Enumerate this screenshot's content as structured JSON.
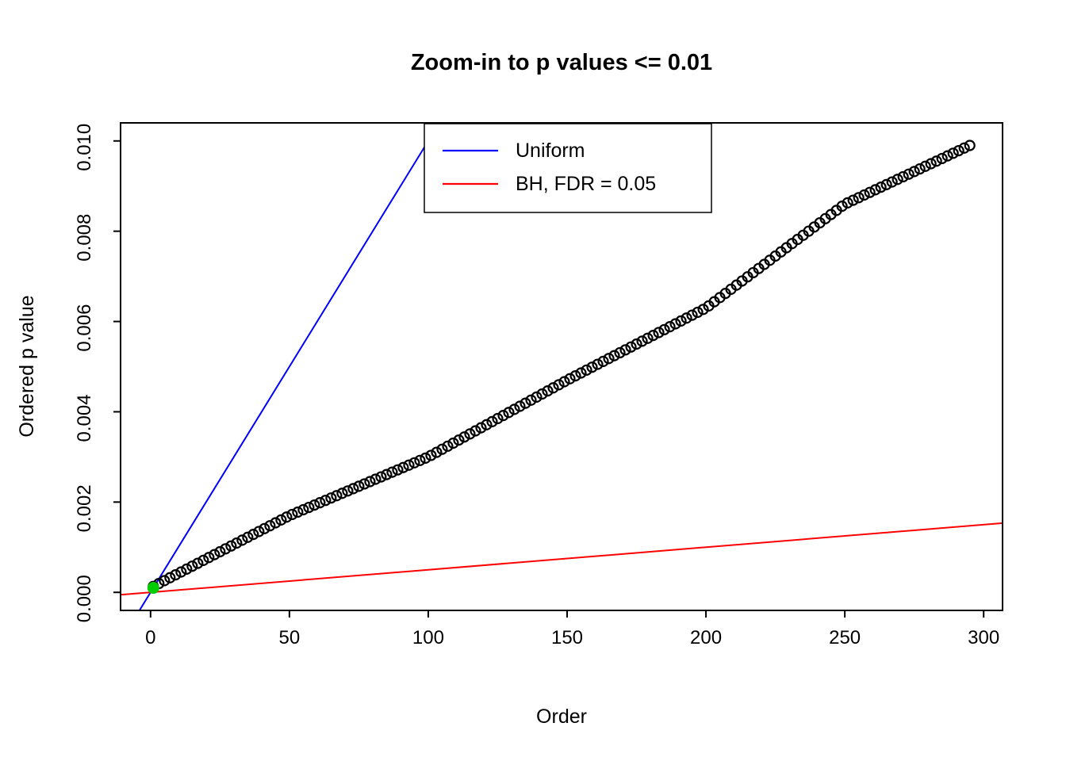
{
  "chart_data": {
    "type": "scatter",
    "title": "Zoom-in to p values <= 0.01",
    "xlabel": "Order",
    "ylabel": "Ordered p value",
    "xlim_usr": [
      -10.8,
      306.8
    ],
    "ylim_usr": [
      -0.0004,
      0.0104
    ],
    "xticks": [
      0,
      50,
      100,
      150,
      200,
      250,
      300
    ],
    "yticks": [
      {
        "value": 0.0,
        "label": "0.000"
      },
      {
        "value": 0.002,
        "label": "0.002"
      },
      {
        "value": 0.004,
        "label": "0.004"
      },
      {
        "value": 0.006,
        "label": "0.006"
      },
      {
        "value": 0.008,
        "label": "0.008"
      },
      {
        "value": 0.01,
        "label": "0.010"
      }
    ],
    "legend": [
      {
        "label": "Uniform",
        "color": "#0000FF"
      },
      {
        "label": "BH, FDR = 0.05",
        "color": "#FF0000"
      }
    ],
    "lines": [
      {
        "name": "uniform",
        "color": "#0000FF",
        "slope": 0.0001,
        "intercept": 0
      },
      {
        "name": "bh-fdr",
        "color": "#FF0000",
        "slope": 5e-06,
        "intercept": 0
      }
    ],
    "point_style": {
      "stroke": "#000000",
      "radius": 6,
      "stroke_width": 2.2
    },
    "highlight": {
      "color": "#00CC00",
      "radius": 7,
      "points": [
        [
          1,
          0.0001
        ]
      ]
    },
    "points": [
      [
        1,
        0.000132
      ],
      [
        3,
        0.000196
      ],
      [
        5,
        0.00026
      ],
      [
        7,
        0.000324
      ],
      [
        9,
        0.000388
      ],
      [
        11,
        0.000452
      ],
      [
        13,
        0.000516
      ],
      [
        15,
        0.00058
      ],
      [
        17,
        0.000644
      ],
      [
        19,
        0.000708
      ],
      [
        21,
        0.000772
      ],
      [
        23,
        0.000836
      ],
      [
        25,
        0.0009
      ],
      [
        27,
        0.000964
      ],
      [
        29,
        0.001028
      ],
      [
        31,
        0.001092
      ],
      [
        33,
        0.001156
      ],
      [
        35,
        0.00122
      ],
      [
        37,
        0.001284
      ],
      [
        39,
        0.001348
      ],
      [
        41,
        0.001412
      ],
      [
        43,
        0.001476
      ],
      [
        45,
        0.00154
      ],
      [
        47,
        0.001604
      ],
      [
        49,
        0.001668
      ],
      [
        51,
        0.001726
      ],
      [
        53,
        0.001778
      ],
      [
        55,
        0.00183
      ],
      [
        57,
        0.001882
      ],
      [
        59,
        0.001934
      ],
      [
        61,
        0.001986
      ],
      [
        63,
        0.002038
      ],
      [
        65,
        0.00209
      ],
      [
        67,
        0.002142
      ],
      [
        69,
        0.002194
      ],
      [
        71,
        0.002246
      ],
      [
        73,
        0.002298
      ],
      [
        75,
        0.00235
      ],
      [
        77,
        0.002402
      ],
      [
        79,
        0.002454
      ],
      [
        81,
        0.002506
      ],
      [
        83,
        0.002558
      ],
      [
        85,
        0.00261
      ],
      [
        87,
        0.002662
      ],
      [
        89,
        0.002714
      ],
      [
        91,
        0.002766
      ],
      [
        93,
        0.002818
      ],
      [
        95,
        0.00287
      ],
      [
        97,
        0.002922
      ],
      [
        99,
        0.002974
      ],
      [
        101,
        0.003034
      ],
      [
        103,
        0.003102
      ],
      [
        105,
        0.00317
      ],
      [
        107,
        0.003238
      ],
      [
        109,
        0.003306
      ],
      [
        111,
        0.003374
      ],
      [
        113,
        0.003442
      ],
      [
        115,
        0.00351
      ],
      [
        117,
        0.003578
      ],
      [
        119,
        0.003646
      ],
      [
        121,
        0.003714
      ],
      [
        123,
        0.003782
      ],
      [
        125,
        0.00385
      ],
      [
        127,
        0.003918
      ],
      [
        129,
        0.003986
      ],
      [
        131,
        0.004054
      ],
      [
        133,
        0.004122
      ],
      [
        135,
        0.00419
      ],
      [
        137,
        0.004258
      ],
      [
        139,
        0.004326
      ],
      [
        141,
        0.004394
      ],
      [
        143,
        0.004462
      ],
      [
        145,
        0.00453
      ],
      [
        147,
        0.004598
      ],
      [
        149,
        0.004666
      ],
      [
        151,
        0.004732
      ],
      [
        153,
        0.004796
      ],
      [
        155,
        0.00486
      ],
      [
        157,
        0.004924
      ],
      [
        159,
        0.004988
      ],
      [
        161,
        0.005052
      ],
      [
        163,
        0.005116
      ],
      [
        165,
        0.00518
      ],
      [
        167,
        0.005244
      ],
      [
        169,
        0.005308
      ],
      [
        171,
        0.005372
      ],
      [
        173,
        0.005436
      ],
      [
        175,
        0.0055
      ],
      [
        177,
        0.005564
      ],
      [
        179,
        0.005628
      ],
      [
        181,
        0.005692
      ],
      [
        183,
        0.005756
      ],
      [
        185,
        0.00582
      ],
      [
        187,
        0.005884
      ],
      [
        189,
        0.005948
      ],
      [
        191,
        0.006012
      ],
      [
        193,
        0.006076
      ],
      [
        195,
        0.00614
      ],
      [
        197,
        0.006204
      ],
      [
        199,
        0.006268
      ],
      [
        201,
        0.006346
      ],
      [
        203,
        0.006438
      ],
      [
        205,
        0.00653
      ],
      [
        207,
        0.006622
      ],
      [
        209,
        0.006714
      ],
      [
        211,
        0.006806
      ],
      [
        213,
        0.006898
      ],
      [
        215,
        0.00699
      ],
      [
        217,
        0.007082
      ],
      [
        219,
        0.007174
      ],
      [
        221,
        0.007266
      ],
      [
        223,
        0.007358
      ],
      [
        225,
        0.00745
      ],
      [
        227,
        0.007542
      ],
      [
        229,
        0.007634
      ],
      [
        231,
        0.007726
      ],
      [
        233,
        0.007818
      ],
      [
        235,
        0.00791
      ],
      [
        237,
        0.008002
      ],
      [
        239,
        0.008094
      ],
      [
        241,
        0.008186
      ],
      [
        243,
        0.008278
      ],
      [
        245,
        0.00837
      ],
      [
        247,
        0.008462
      ],
      [
        249,
        0.008554
      ],
      [
        251,
        0.008629
      ],
      [
        253,
        0.008687
      ],
      [
        255,
        0.008744
      ],
      [
        257,
        0.008802
      ],
      [
        259,
        0.00886
      ],
      [
        261,
        0.008918
      ],
      [
        263,
        0.008976
      ],
      [
        265,
        0.009033
      ],
      [
        267,
        0.009091
      ],
      [
        269,
        0.009149
      ],
      [
        271,
        0.009207
      ],
      [
        273,
        0.009264
      ],
      [
        275,
        0.009322
      ],
      [
        277,
        0.00938
      ],
      [
        279,
        0.009438
      ],
      [
        281,
        0.009496
      ],
      [
        283,
        0.009553
      ],
      [
        285,
        0.009611
      ],
      [
        287,
        0.009669
      ],
      [
        289,
        0.009727
      ],
      [
        291,
        0.009784
      ],
      [
        293,
        0.009842
      ],
      [
        295,
        0.0099
      ]
    ]
  }
}
